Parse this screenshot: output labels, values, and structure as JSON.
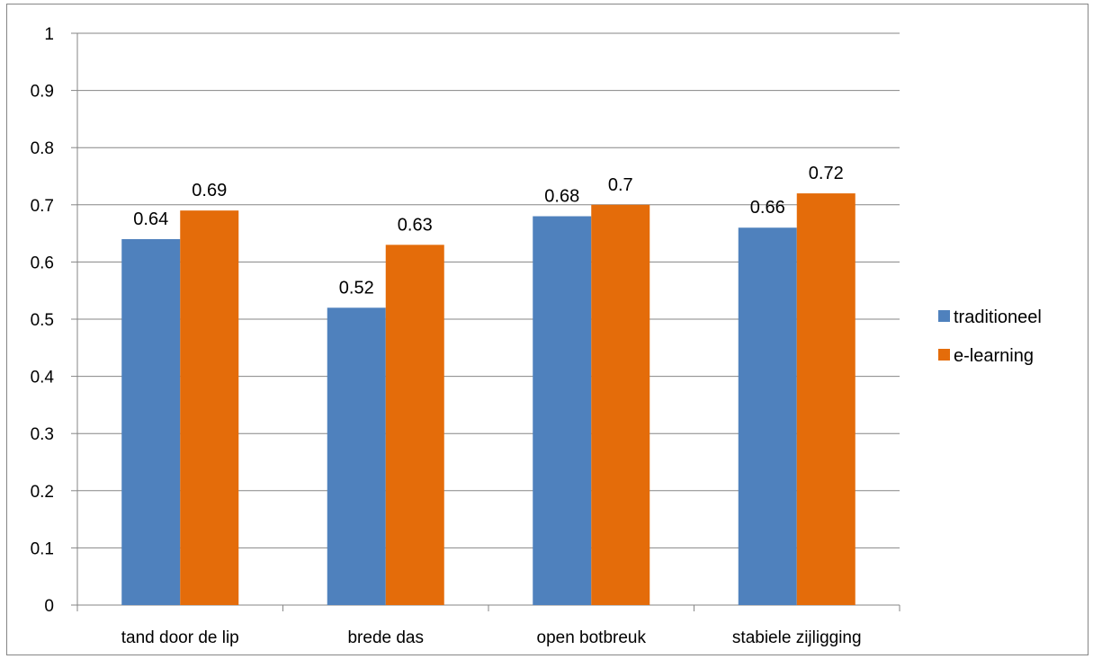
{
  "chart_data": {
    "type": "bar",
    "categories": [
      "tand door de lip",
      "brede das",
      "open botbreuk",
      "stabiele zijligging"
    ],
    "series": [
      {
        "name": "traditioneel",
        "values": [
          0.64,
          0.52,
          0.68,
          0.66
        ],
        "color": "#4F81BD"
      },
      {
        "name": "e-learning",
        "values": [
          0.69,
          0.63,
          0.7,
          0.72
        ],
        "color": "#E46C0A"
      }
    ],
    "data_labels": [
      [
        "0.64",
        "0.52",
        "0.68",
        "0.66"
      ],
      [
        "0.69",
        "0.63",
        "0.7",
        "0.72"
      ]
    ],
    "y_ticks": [
      "0",
      "0.1",
      "0.2",
      "0.3",
      "0.4",
      "0.5",
      "0.6",
      "0.7",
      "0.8",
      "0.9",
      "1"
    ],
    "ylim": [
      0,
      1
    ],
    "title": "",
    "xlabel": "",
    "ylabel": "",
    "grid": true,
    "legend_position": "right",
    "colors": {
      "gridline": "#868686",
      "axis": "#868686",
      "border": "#868686",
      "text": "#000000"
    }
  }
}
